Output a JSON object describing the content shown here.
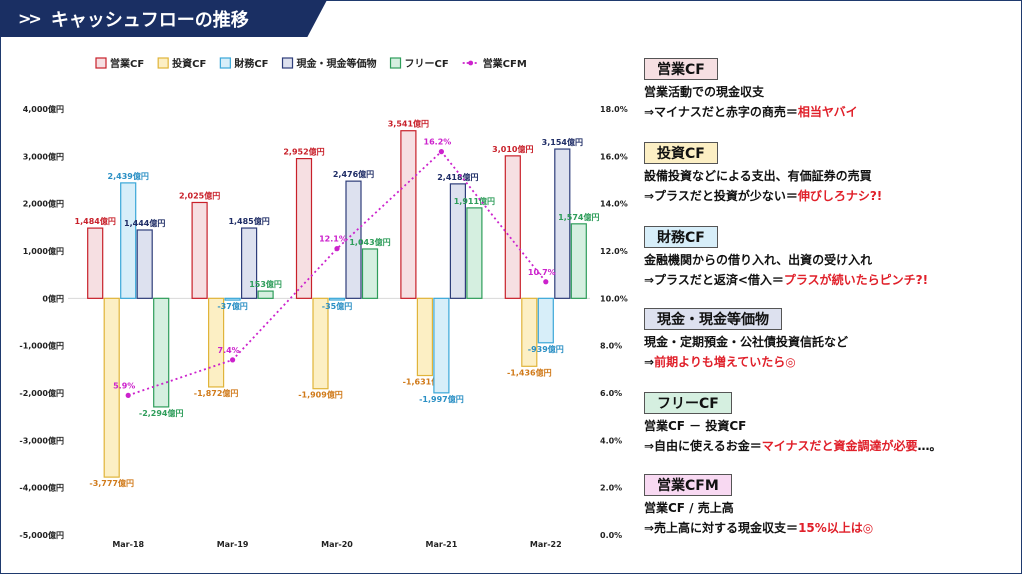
{
  "page": {
    "title": "キャッシュフローの推移"
  },
  "legend": [
    {
      "label": "営業CF",
      "fill": "#f6dfe2",
      "stroke": "#c8202a"
    },
    {
      "label": "投資CF",
      "fill": "#fcefc4",
      "stroke": "#e0b43a"
    },
    {
      "label": "財務CF",
      "fill": "#d7eef9",
      "stroke": "#3aa7d8"
    },
    {
      "label": "現金・現金等価物",
      "fill": "#dde1ef",
      "stroke": "#2e3d7a"
    },
    {
      "label": "フリーCF",
      "fill": "#d5efe0",
      "stroke": "#2e9d5a"
    },
    {
      "label": "営業CFM",
      "line": "#cc22cc"
    }
  ],
  "chart_data": {
    "type": "bar",
    "categories": [
      "Mar-18",
      "Mar-19",
      "Mar-20",
      "Mar-21",
      "Mar-22"
    ],
    "ylim": [
      -5000,
      4000
    ],
    "y2lim": [
      0,
      18
    ],
    "y_ticks": [
      "4,000億円",
      "3,000億円",
      "2,000億円",
      "1,000億円",
      "0億円",
      "-1,000億円",
      "-2,000億円",
      "-3,000億円",
      "-4,000億円",
      "-5,000億円"
    ],
    "y2_ticks": [
      "18.0%",
      "16.0%",
      "14.0%",
      "12.0%",
      "10.0%",
      "8.0%",
      "6.0%",
      "4.0%",
      "2.0%",
      "0.0%"
    ],
    "series": [
      {
        "name": "営業CF",
        "values": [
          1484,
          2025,
          2952,
          3541,
          3010
        ],
        "labels": [
          "1,484億円",
          "2,025億円",
          "2,952億円",
          "3,541億円",
          "3,010億円"
        ],
        "fill": "#f6dfe2",
        "stroke": "#c8202a",
        "label_color": "#c8202a"
      },
      {
        "name": "投資CF",
        "values": [
          -3777,
          -1872,
          -1909,
          -1631,
          -1436
        ],
        "labels": [
          "-3,777億円",
          "-1,872億円",
          "-1,909億円",
          "-1,631億円",
          "-1,436億円"
        ],
        "fill": "#fcefc4",
        "stroke": "#e0b43a",
        "label_color": "#d07a1a"
      },
      {
        "name": "財務CF",
        "values": [
          2439,
          -37,
          -35,
          -1997,
          -939
        ],
        "labels": [
          "2,439億円",
          "-37億円",
          "-35億円",
          "-1,997億円",
          "-939億円"
        ],
        "fill": "#d7eef9",
        "stroke": "#3aa7d8",
        "label_color": "#2a8fc4"
      },
      {
        "name": "現金・現金等価物",
        "values": [
          1444,
          1485,
          2476,
          2418,
          3154
        ],
        "labels": [
          "1,444億円",
          "1,485億円",
          "2,476億円",
          "2,418億円",
          "3,154億円"
        ],
        "fill": "#dde1ef",
        "stroke": "#2e3d7a",
        "label_color": "#1f2d66"
      },
      {
        "name": "フリーCF",
        "values": [
          -2294,
          153,
          1043,
          1911,
          1574
        ],
        "labels": [
          "-2,294億円",
          "153億円",
          "1,043億円",
          "1,911億円",
          "1,574億円"
        ],
        "fill": "#d5efe0",
        "stroke": "#2e9d5a",
        "label_color": "#2e9d5a"
      },
      {
        "name": "営業CFM",
        "axis": "right",
        "values": [
          5.9,
          7.4,
          12.1,
          16.2,
          10.7
        ],
        "labels": [
          "5.9%",
          "7.4%",
          "12.1%",
          "16.2%",
          "10.7%"
        ],
        "line": "#cc22cc"
      }
    ]
  },
  "info": [
    {
      "header": "営業CF",
      "header_bg": "#f6dfe2",
      "line1": [
        {
          "t": "営業活動での現金収支"
        }
      ],
      "line2": [
        {
          "t": "⇒マイナスだと赤字の商売＝"
        },
        {
          "t": "相当ヤバイ",
          "hl": true
        }
      ]
    },
    {
      "header": "投資CF",
      "header_bg": "#fcefc4",
      "line1": [
        {
          "t": "設備投資などによる支出、有価証券の売買"
        }
      ],
      "line2": [
        {
          "t": "⇒プラスだと投資が少ない＝"
        },
        {
          "t": "伸びしろナシ?!",
          "hl": true
        }
      ]
    },
    {
      "header": "財務CF",
      "header_bg": "#d7eef9",
      "line1": [
        {
          "t": "金融機関からの借り入れ、出資の受け入れ"
        }
      ],
      "line2": [
        {
          "t": "⇒プラスだと返済<借入＝"
        },
        {
          "t": "プラスが続いたらピンチ?!",
          "hl": true
        }
      ]
    },
    {
      "header": "現金・現金等価物",
      "header_bg": "#dde1ef",
      "line1": [
        {
          "t": "現金・定期預金・公社債投資信託など"
        }
      ],
      "line2": [
        {
          "t": "⇒"
        },
        {
          "t": "前期よりも増えていたら◎",
          "hl": true
        }
      ]
    },
    {
      "header": "フリーCF",
      "header_bg": "#d5efe0",
      "line1": [
        {
          "t": "営業CF － 投資CF"
        }
      ],
      "line2": [
        {
          "t": "⇒自由に使えるお金＝"
        },
        {
          "t": "マイナスだと資金調達が必要",
          "hl": true
        },
        {
          "t": "…。"
        }
      ]
    },
    {
      "header": "営業CFM",
      "header_bg": "#f8d9f2",
      "line1": [
        {
          "t": "営業CF / 売上高"
        }
      ],
      "line2": [
        {
          "t": "⇒売上高に対する現金収支＝"
        },
        {
          "t": "15%以上は◎",
          "hl": true
        }
      ]
    }
  ]
}
